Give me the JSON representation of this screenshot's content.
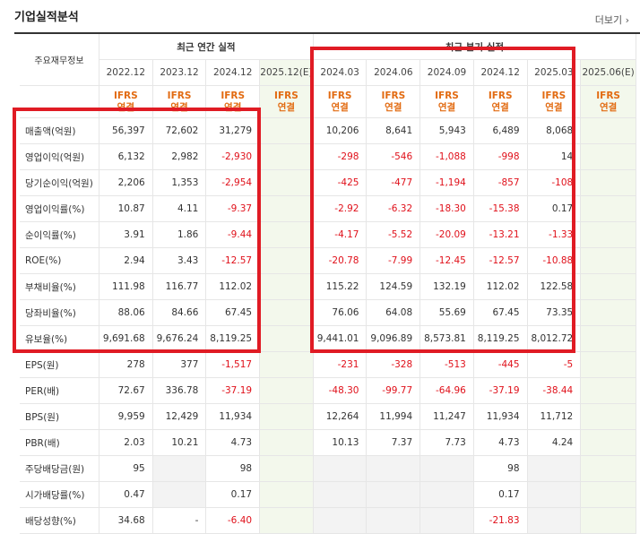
{
  "header": {
    "title": "기업실적분석",
    "more_label": "더보기",
    "more_icon": "chevron-right-icon"
  },
  "table": {
    "label_header": "주요재무정보",
    "groups": {
      "annual": "최근 연간 실적",
      "quarterly": "최근 분기 실적"
    },
    "periods": [
      "2022.12",
      "2023.12",
      "2024.12",
      "2025.12(E)",
      "2024.03",
      "2024.06",
      "2024.09",
      "2024.12",
      "2025.03",
      "2025.06(E)"
    ],
    "ifrs_top": "IFRS",
    "ifrs_bottom": "연결",
    "rows": [
      {
        "label": "매출액(억원)",
        "values": [
          "56,397",
          "72,602",
          "31,279",
          "",
          "10,206",
          "8,641",
          "5,943",
          "6,489",
          "8,068",
          ""
        ]
      },
      {
        "label": "영업이익(억원)",
        "values": [
          "6,132",
          "2,982",
          "-2,930",
          "",
          "-298",
          "-546",
          "-1,088",
          "-998",
          "14",
          ""
        ]
      },
      {
        "label": "당기순이익(억원)",
        "values": [
          "2,206",
          "1,353",
          "-2,954",
          "",
          "-425",
          "-477",
          "-1,194",
          "-857",
          "-108",
          ""
        ]
      },
      {
        "label": "영업이익률(%)",
        "values": [
          "10.87",
          "4.11",
          "-9.37",
          "",
          "-2.92",
          "-6.32",
          "-18.30",
          "-15.38",
          "0.17",
          ""
        ]
      },
      {
        "label": "순이익률(%)",
        "values": [
          "3.91",
          "1.86",
          "-9.44",
          "",
          "-4.17",
          "-5.52",
          "-20.09",
          "-13.21",
          "-1.33",
          ""
        ]
      },
      {
        "label": "ROE(%)",
        "values": [
          "2.94",
          "3.43",
          "-12.57",
          "",
          "-20.78",
          "-7.99",
          "-12.45",
          "-12.57",
          "-10.88",
          ""
        ]
      },
      {
        "label": "부채비율(%)",
        "values": [
          "111.98",
          "116.77",
          "112.02",
          "",
          "115.22",
          "124.59",
          "132.19",
          "112.02",
          "122.58",
          ""
        ]
      },
      {
        "label": "당좌비율(%)",
        "values": [
          "88.06",
          "84.66",
          "67.45",
          "",
          "76.06",
          "64.08",
          "55.69",
          "67.45",
          "73.35",
          ""
        ]
      },
      {
        "label": "유보율(%)",
        "values": [
          "9,691.68",
          "9,676.24",
          "8,119.25",
          "",
          "9,441.01",
          "9,096.89",
          "8,573.81",
          "8,119.25",
          "8,012.72",
          ""
        ]
      },
      {
        "label": "EPS(원)",
        "values": [
          "278",
          "377",
          "-1,517",
          "",
          "-231",
          "-328",
          "-513",
          "-445",
          "-5",
          ""
        ]
      },
      {
        "label": "PER(배)",
        "values": [
          "72.67",
          "336.78",
          "-37.19",
          "",
          "-48.30",
          "-99.77",
          "-64.96",
          "-37.19",
          "-38.44",
          ""
        ]
      },
      {
        "label": "BPS(원)",
        "values": [
          "9,959",
          "12,429",
          "11,934",
          "",
          "12,264",
          "11,994",
          "11,247",
          "11,934",
          "11,712",
          ""
        ]
      },
      {
        "label": "PBR(배)",
        "values": [
          "2.03",
          "10.21",
          "4.73",
          "",
          "10.13",
          "7.37",
          "7.73",
          "4.73",
          "4.24",
          ""
        ]
      },
      {
        "label": "주당배당금(원)",
        "values": [
          "95",
          "",
          "98",
          "",
          "",
          "",
          "",
          "98",
          "",
          ""
        ]
      },
      {
        "label": "시가배당률(%)",
        "values": [
          "0.47",
          "",
          "0.17",
          "",
          "",
          "",
          "",
          "0.17",
          "",
          ""
        ]
      },
      {
        "label": "배당성향(%)",
        "values": [
          "34.68",
          "-",
          "-6.40",
          "",
          "",
          "",
          "",
          "-21.83",
          "",
          ""
        ]
      }
    ]
  },
  "colors": {
    "negative": "#e0101a",
    "ifrs": "#e26b12",
    "highlight_box": "#e01b24",
    "estimate_bg": "#f3f8ec"
  }
}
